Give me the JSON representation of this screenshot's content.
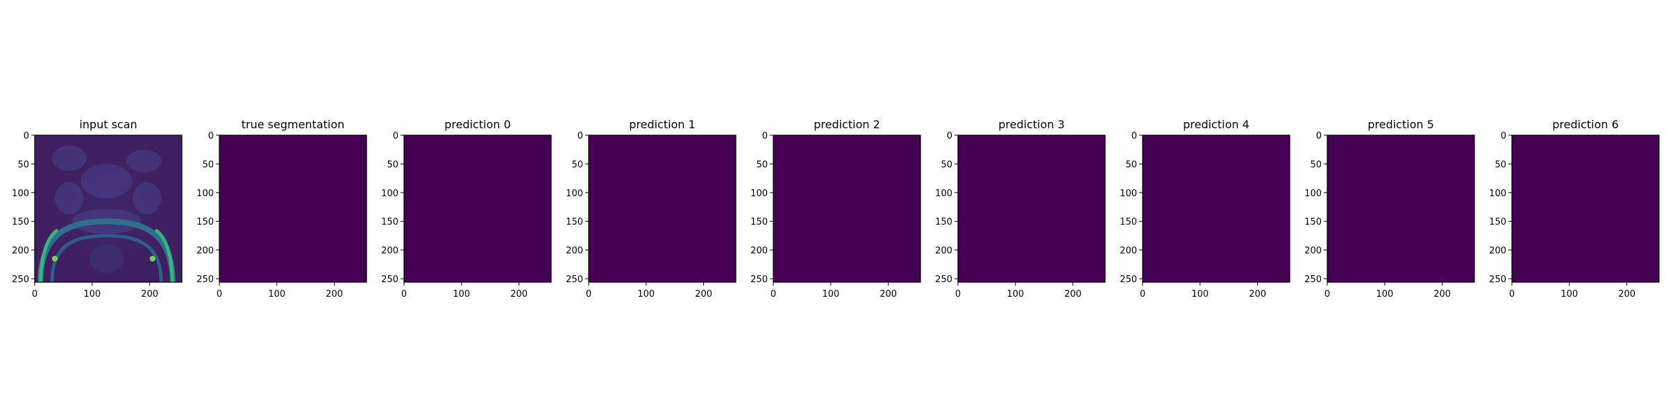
{
  "chart_data": [
    {
      "type": "heatmap",
      "title": "input scan",
      "image": "mri-scan",
      "colormap": "viridis",
      "xlim": [
        0,
        256
      ],
      "ylim": [
        256,
        0
      ],
      "xticks": [
        0,
        100,
        200
      ],
      "yticks": [
        0,
        50,
        100,
        150,
        200,
        250
      ]
    },
    {
      "type": "heatmap",
      "title": "true segmentation",
      "image": "mask",
      "colormap": "viridis",
      "xlim": [
        0,
        256
      ],
      "ylim": [
        256,
        0
      ],
      "xticks": [
        0,
        100,
        200
      ],
      "yticks": [
        0,
        50,
        100,
        150,
        200,
        250
      ]
    },
    {
      "type": "heatmap",
      "title": "prediction 0",
      "image": "mask",
      "colormap": "viridis",
      "xlim": [
        0,
        256
      ],
      "ylim": [
        256,
        0
      ],
      "xticks": [
        0,
        100,
        200
      ],
      "yticks": [
        0,
        50,
        100,
        150,
        200,
        250
      ]
    },
    {
      "type": "heatmap",
      "title": "prediction 1",
      "image": "mask",
      "colormap": "viridis",
      "xlim": [
        0,
        256
      ],
      "ylim": [
        256,
        0
      ],
      "xticks": [
        0,
        100,
        200
      ],
      "yticks": [
        0,
        50,
        100,
        150,
        200,
        250
      ]
    },
    {
      "type": "heatmap",
      "title": "prediction 2",
      "image": "mask",
      "colormap": "viridis",
      "xlim": [
        0,
        256
      ],
      "ylim": [
        256,
        0
      ],
      "xticks": [
        0,
        100,
        200
      ],
      "yticks": [
        0,
        50,
        100,
        150,
        200,
        250
      ]
    },
    {
      "type": "heatmap",
      "title": "prediction 3",
      "image": "mask",
      "colormap": "viridis",
      "xlim": [
        0,
        256
      ],
      "ylim": [
        256,
        0
      ],
      "xticks": [
        0,
        100,
        200
      ],
      "yticks": [
        0,
        50,
        100,
        150,
        200,
        250
      ]
    },
    {
      "type": "heatmap",
      "title": "prediction 4",
      "image": "mask",
      "colormap": "viridis",
      "xlim": [
        0,
        256
      ],
      "ylim": [
        256,
        0
      ],
      "xticks": [
        0,
        100,
        200
      ],
      "yticks": [
        0,
        50,
        100,
        150,
        200,
        250
      ]
    },
    {
      "type": "heatmap",
      "title": "prediction 5",
      "image": "mask",
      "colormap": "viridis",
      "xlim": [
        0,
        256
      ],
      "ylim": [
        256,
        0
      ],
      "xticks": [
        0,
        100,
        200
      ],
      "yticks": [
        0,
        50,
        100,
        150,
        200,
        250
      ]
    },
    {
      "type": "heatmap",
      "title": "prediction 6",
      "image": "mask",
      "colormap": "viridis",
      "xlim": [
        0,
        256
      ],
      "ylim": [
        256,
        0
      ],
      "xticks": [
        0,
        100,
        200
      ],
      "yticks": [
        0,
        50,
        100,
        150,
        200,
        250
      ]
    }
  ],
  "colors": {
    "background": "#440154",
    "mask": "#fde725",
    "scan_dark": "#3b2a6b",
    "scan_mid": "#2f6f8e",
    "scan_bright": "#35b779"
  }
}
